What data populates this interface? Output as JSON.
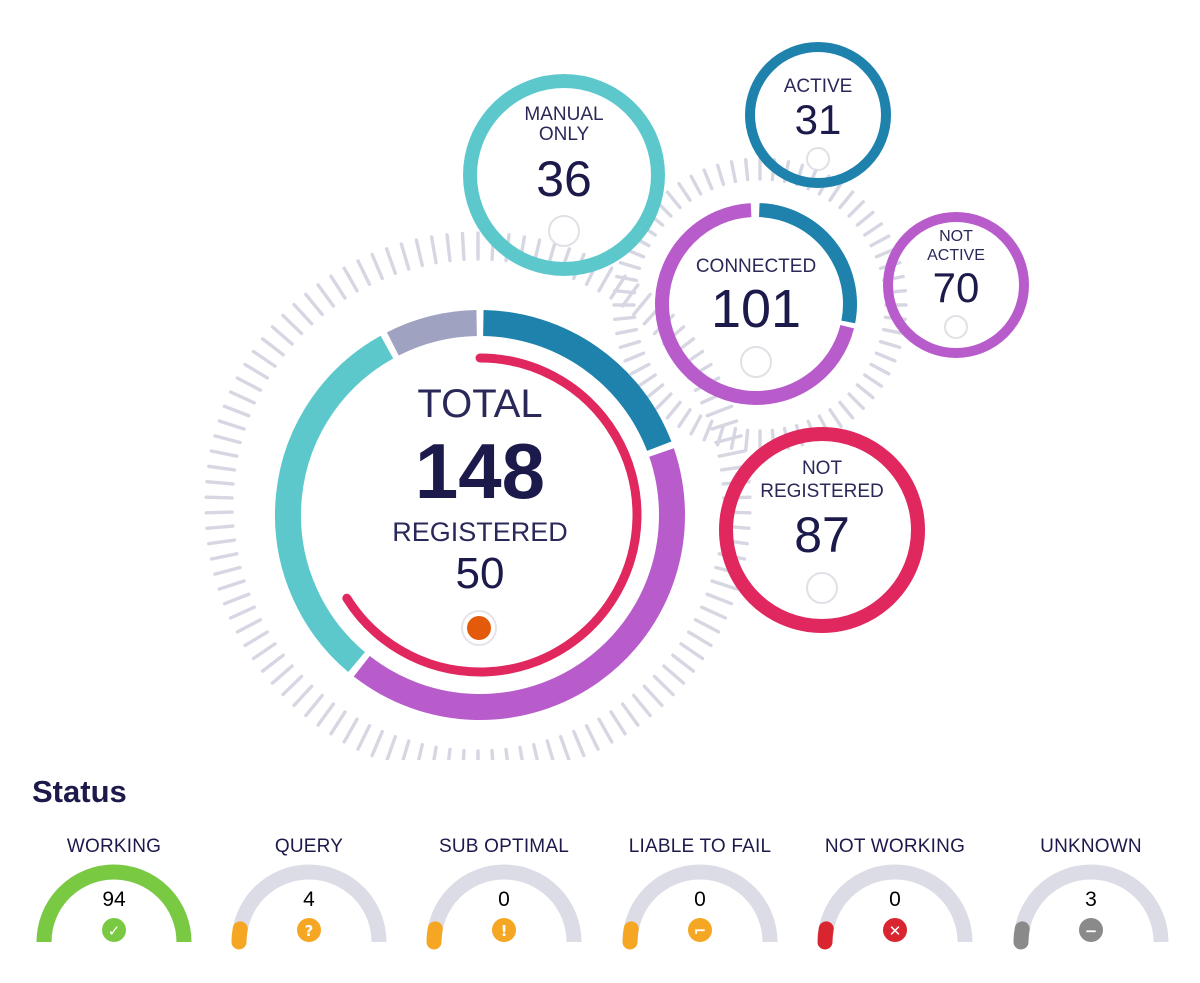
{
  "rings": {
    "total": {
      "label": "TOTAL",
      "value": "148"
    },
    "registered": {
      "label": "REGISTERED",
      "value": "50"
    },
    "manual_only": {
      "label_line1": "MANUAL",
      "label_line2": "ONLY",
      "value": "36"
    },
    "active": {
      "label": "ACTIVE",
      "value": "31"
    },
    "connected": {
      "label": "CONNECTED",
      "value": "101"
    },
    "not_active": {
      "label_line1": "NOT",
      "label_line2": "ACTIVE",
      "value": "70"
    },
    "not_registered": {
      "label_line1": "NOT",
      "label_line2": "REGISTERED",
      "value": "87"
    }
  },
  "colors": {
    "teal": "#5cc8cc",
    "blue": "#1e82ad",
    "purple": "#b85ccc",
    "crimson": "#e0285e",
    "lavender": "#a0a2c2",
    "tick_gray": "#d6d7e2",
    "orange_dot": "#e35a0a",
    "green": "#7ac943",
    "amber": "#f5a623",
    "red": "#d9252f",
    "gray": "#8a8a8a",
    "track": "#dcdce6"
  },
  "status": {
    "title": "Status",
    "items": [
      {
        "label": "WORKING",
        "value": "94",
        "icon": "check-icon",
        "color": "#7ac943",
        "fill": 1.0
      },
      {
        "label": "QUERY",
        "value": "4",
        "icon": "question-icon",
        "color": "#f5a623",
        "fill": 0.04
      },
      {
        "label": "SUB OPTIMAL",
        "value": "0",
        "icon": "exclamation-icon",
        "color": "#f5a623",
        "fill": 0.0
      },
      {
        "label": "LIABLE TO FAIL",
        "value": "0",
        "icon": "corner-icon",
        "color": "#f5a623",
        "fill": 0.0
      },
      {
        "label": "NOT WORKING",
        "value": "0",
        "icon": "x-icon",
        "color": "#d9252f",
        "fill": 0.0
      },
      {
        "label": "UNKNOWN",
        "value": "3",
        "icon": "minus-icon",
        "color": "#8a8a8a",
        "fill": 0.03
      }
    ]
  }
}
